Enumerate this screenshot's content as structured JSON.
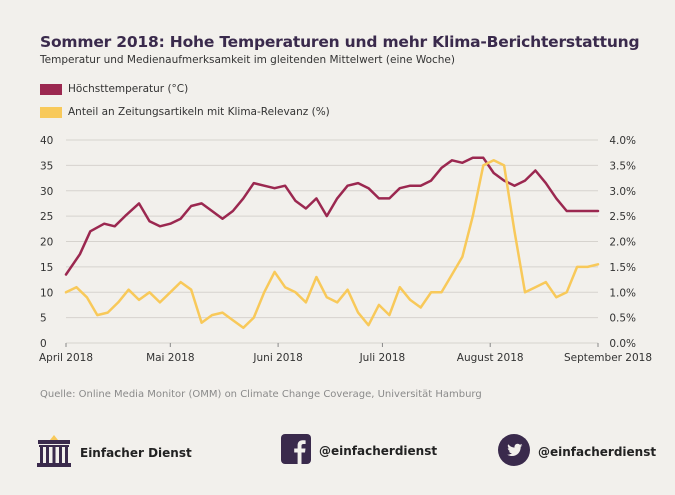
{
  "title": "Sommer 2018: Hohe Temperaturen und mehr Klima-Berichterstattung",
  "subtitle": "Temperatur und Medienaufmerksamkeit im gleitenden Mittelwert (eine Woche)",
  "source": "Quelle: Online Media Monitor (OMM) on Climate Change Coverage, Universität Hamburg",
  "footer": {
    "brand": "Einfacher Dienst",
    "facebook": "@einfacherdienst",
    "twitter": "@einfacherdienst"
  },
  "colors": {
    "temperature": "#9b2850",
    "share": "#f8c95a",
    "grid": "#d6d3ce",
    "background": "#f2f0ec"
  },
  "icons": [
    "brandenburg-gate-icon",
    "facebook-icon",
    "twitter-icon"
  ],
  "chart_data": {
    "type": "line",
    "x_range": [
      "2018-04-01",
      "2018-09-01"
    ],
    "x_ticks": [
      {
        "date": "2018-04-01",
        "label": "April 2018"
      },
      {
        "date": "2018-05-01",
        "label": "Mai 2018"
      },
      {
        "date": "2018-06-01",
        "label": "Juni 2018"
      },
      {
        "date": "2018-07-01",
        "label": "Juli 2018"
      },
      {
        "date": "2018-08-01",
        "label": "August 2018"
      },
      {
        "date": "2018-09-01",
        "label": "September 2018"
      }
    ],
    "y_left": {
      "lim": [
        0,
        40
      ],
      "ticks": [
        0,
        5,
        10,
        15,
        20,
        25,
        30,
        35,
        40
      ],
      "labels": [
        "0",
        "5",
        "10",
        "15",
        "20",
        "25",
        "30",
        "35",
        "40"
      ]
    },
    "y_right": {
      "lim": [
        0,
        4
      ],
      "ticks": [
        0,
        0.5,
        1,
        1.5,
        2,
        2.5,
        3,
        3.5,
        4
      ],
      "labels": [
        "0.0%",
        "0.5%",
        "1.0%",
        "1.5%",
        "2.0%",
        "2.5%",
        "3.0%",
        "3.5%",
        "4.0%"
      ]
    },
    "grid": true,
    "legend_position": "top-left",
    "series": [
      {
        "name": "Höchsttemperatur (°C)",
        "axis": "left",
        "x": [
          "2018-04-01",
          "2018-04-05",
          "2018-04-08",
          "2018-04-12",
          "2018-04-15",
          "2018-04-18",
          "2018-04-22",
          "2018-04-25",
          "2018-04-28",
          "2018-05-01",
          "2018-05-04",
          "2018-05-07",
          "2018-05-10",
          "2018-05-13",
          "2018-05-16",
          "2018-05-19",
          "2018-05-22",
          "2018-05-25",
          "2018-05-28",
          "2018-05-31",
          "2018-06-03",
          "2018-06-06",
          "2018-06-09",
          "2018-06-12",
          "2018-06-15",
          "2018-06-18",
          "2018-06-21",
          "2018-06-24",
          "2018-06-27",
          "2018-06-30",
          "2018-07-03",
          "2018-07-06",
          "2018-07-09",
          "2018-07-12",
          "2018-07-15",
          "2018-07-18",
          "2018-07-21",
          "2018-07-24",
          "2018-07-27",
          "2018-07-30",
          "2018-08-02",
          "2018-08-05",
          "2018-08-08",
          "2018-08-11",
          "2018-08-14",
          "2018-08-17",
          "2018-08-20",
          "2018-08-23",
          "2018-08-26",
          "2018-08-29",
          "2018-09-01"
        ],
        "values": [
          13.5,
          17.5,
          22.0,
          23.5,
          23.0,
          25.0,
          27.5,
          24.0,
          23.0,
          23.5,
          24.5,
          27.0,
          27.5,
          26.0,
          24.5,
          26.0,
          28.5,
          31.5,
          31.0,
          30.5,
          31.0,
          28.0,
          26.5,
          28.5,
          25.0,
          28.5,
          31.0,
          31.5,
          30.5,
          28.5,
          28.5,
          30.5,
          31.0,
          31.0,
          32.0,
          34.5,
          36.0,
          35.5,
          36.5,
          36.5,
          33.5,
          32.0,
          31.0,
          32.0,
          34.0,
          31.5,
          28.5,
          26.0,
          26.0,
          26.0,
          26.0
        ]
      },
      {
        "name": "Anteil an Zeitungsartikeln mit Klima-Relevanz (%)",
        "axis": "right",
        "x": [
          "2018-04-01",
          "2018-04-04",
          "2018-04-07",
          "2018-04-10",
          "2018-04-13",
          "2018-04-16",
          "2018-04-19",
          "2018-04-22",
          "2018-04-25",
          "2018-04-28",
          "2018-05-01",
          "2018-05-04",
          "2018-05-07",
          "2018-05-10",
          "2018-05-13",
          "2018-05-16",
          "2018-05-19",
          "2018-05-22",
          "2018-05-25",
          "2018-05-28",
          "2018-05-31",
          "2018-06-03",
          "2018-06-06",
          "2018-06-09",
          "2018-06-12",
          "2018-06-15",
          "2018-06-18",
          "2018-06-21",
          "2018-06-24",
          "2018-06-27",
          "2018-06-30",
          "2018-07-03",
          "2018-07-06",
          "2018-07-09",
          "2018-07-12",
          "2018-07-15",
          "2018-07-18",
          "2018-07-21",
          "2018-07-24",
          "2018-07-27",
          "2018-07-30",
          "2018-08-02",
          "2018-08-05",
          "2018-08-08",
          "2018-08-11",
          "2018-08-14",
          "2018-08-17",
          "2018-08-20",
          "2018-08-23",
          "2018-08-26",
          "2018-08-29",
          "2018-09-01"
        ],
        "values": [
          1.0,
          1.1,
          0.9,
          0.55,
          0.6,
          0.8,
          1.05,
          0.85,
          1.0,
          0.8,
          1.0,
          1.2,
          1.05,
          0.4,
          0.55,
          0.6,
          0.45,
          0.3,
          0.5,
          1.0,
          1.4,
          1.1,
          1.0,
          0.8,
          1.3,
          0.9,
          0.8,
          1.05,
          0.6,
          0.35,
          0.75,
          0.55,
          1.1,
          0.85,
          0.7,
          1.0,
          1.0,
          1.35,
          1.7,
          2.5,
          3.5,
          3.6,
          3.5,
          2.2,
          1.0,
          1.1,
          1.2,
          0.9,
          1.0,
          1.5,
          1.5,
          1.55
        ]
      }
    ]
  }
}
